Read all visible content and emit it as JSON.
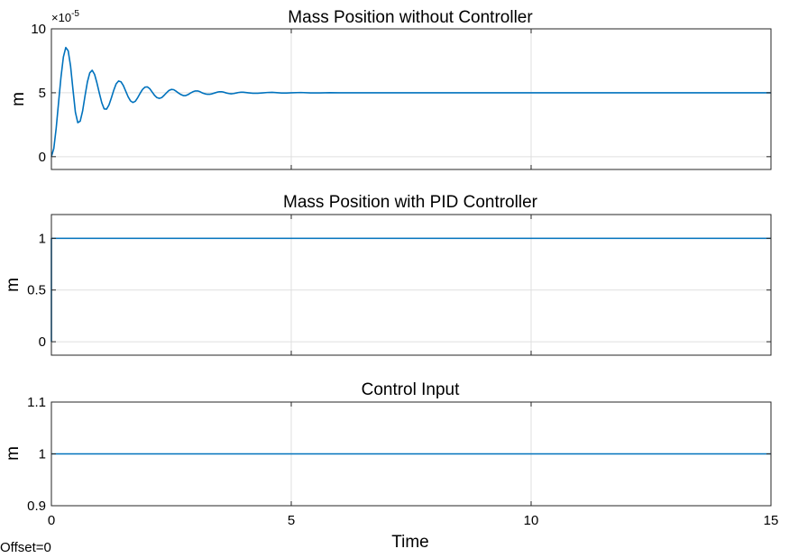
{
  "figure": {
    "xlabel": "Time",
    "offset_text": "Offset=0",
    "line_color": "#0072bd",
    "grid_color": "#dfdfdf"
  },
  "chart_data": [
    {
      "type": "line",
      "title": "Mass Position without Controller",
      "ylabel": "m",
      "xlim": [
        0,
        15
      ],
      "ylim": [
        -1e-05,
        0.0001
      ],
      "yticks": [
        0,
        5e-05,
        0.0001
      ],
      "ytick_labels": [
        "0",
        "5",
        "10"
      ],
      "y_exponent_label": "×10",
      "y_exponent": "-5",
      "xticks": [
        0,
        5,
        10,
        15
      ],
      "grid": true,
      "series": [
        {
          "x": [
            0,
            0.05,
            0.1,
            0.15,
            0.2,
            0.25,
            0.3,
            0.35,
            0.4,
            0.45,
            0.5,
            0.55,
            0.6,
            0.65,
            0.7,
            0.75,
            0.8,
            0.85,
            0.9,
            0.95,
            1,
            1.05,
            1.1,
            1.15,
            1.2,
            1.25,
            1.3,
            1.35,
            1.4,
            1.45,
            1.5,
            1.55,
            1.6,
            1.65,
            1.7,
            1.75,
            1.8,
            1.85,
            1.9,
            1.95,
            2,
            2.05,
            2.1,
            2.15,
            2.2,
            2.25,
            2.3,
            2.35,
            2.4,
            2.45,
            2.5,
            2.55,
            2.6,
            2.65,
            2.7,
            2.75,
            2.8,
            2.85,
            2.9,
            2.95,
            3,
            3.05,
            3.1,
            3.15,
            3.2,
            3.25,
            3.3,
            3.35,
            3.4,
            3.45,
            3.5,
            3.55,
            3.6,
            3.65,
            3.7,
            3.75,
            3.8,
            3.85,
            3.9,
            3.95,
            4,
            4.1,
            4.2,
            4.3,
            4.4,
            4.5,
            4.6,
            4.7,
            4.8,
            4.9,
            5,
            5.2,
            5.4,
            5.6,
            5.8,
            6,
            6.2,
            6.4,
            6.6,
            6.8,
            7,
            8,
            9,
            10,
            11,
            12,
            13,
            14,
            15
          ],
          "y": [
            0,
            6.4e-06,
            2.24e-05,
            4.26e-05,
            6.23e-05,
            7.8e-05,
            8.54e-05,
            8.28e-05,
            7.08e-05,
            5.24e-05,
            3.48e-05,
            2.66e-05,
            2.78e-05,
            3.56e-05,
            4.74e-05,
            5.84e-05,
            6.56e-05,
            6.76e-05,
            6.44e-05,
            5.76e-05,
            4.96e-05,
            4.22e-05,
            3.74e-05,
            3.72e-05,
            4.04e-05,
            4.6e-05,
            5.2e-05,
            5.7e-05,
            5.92e-05,
            5.86e-05,
            5.56e-05,
            5.12e-05,
            4.68e-05,
            4.36e-05,
            4.24e-05,
            4.34e-05,
            4.62e-05,
            4.96e-05,
            5.26e-05,
            5.44e-05,
            5.46e-05,
            5.32e-05,
            5.06e-05,
            4.8e-05,
            4.62e-05,
            4.56e-05,
            4.62e-05,
            4.8e-05,
            5e-05,
            5.18e-05,
            5.26e-05,
            5.24e-05,
            5.12e-05,
            4.98e-05,
            4.86e-05,
            4.78e-05,
            4.78e-05,
            4.86e-05,
            4.98e-05,
            5.08e-05,
            5.14e-05,
            5.14e-05,
            5.08e-05,
            4.98e-05,
            4.92e-05,
            4.88e-05,
            4.88e-05,
            4.92e-05,
            4.98e-05,
            5.04e-05,
            5.08e-05,
            5.08e-05,
            5.04e-05,
            4.98e-05,
            4.94e-05,
            4.92e-05,
            4.94e-05,
            4.98e-05,
            5.02e-05,
            5.04e-05,
            5.04e-05,
            5e-05,
            4.96e-05,
            4.96e-05,
            4.99e-05,
            5.02e-05,
            5.03e-05,
            5.01e-05,
            4.98e-05,
            4.98e-05,
            5e-05,
            5.02e-05,
            4.99e-05,
            4.99e-05,
            5.01e-05,
            5e-05,
            5e-05,
            5e-05,
            5e-05,
            5e-05,
            5e-05,
            5e-05,
            5e-05,
            5e-05,
            5e-05,
            5e-05,
            5e-05,
            5e-05,
            5e-05
          ]
        }
      ]
    },
    {
      "type": "line",
      "title": "Mass Position with PID Controller",
      "ylabel": "m",
      "xlim": [
        0,
        15
      ],
      "ylim": [
        -0.13,
        1.23
      ],
      "yticks": [
        0,
        0.5,
        1
      ],
      "ytick_labels": [
        "0",
        "0.5",
        "1"
      ],
      "xticks": [
        0,
        5,
        10,
        15
      ],
      "grid": true,
      "series": [
        {
          "x": [
            0,
            0,
            15
          ],
          "y": [
            0,
            1,
            1
          ]
        }
      ]
    },
    {
      "type": "line",
      "title": "Control Input",
      "ylabel": "m",
      "xlim": [
        0,
        15
      ],
      "ylim": [
        0.9,
        1.1
      ],
      "yticks": [
        0.9,
        1,
        1.1
      ],
      "ytick_labels": [
        "0.9",
        "1",
        "1.1"
      ],
      "xticks": [
        0,
        5,
        10,
        15
      ],
      "xtick_labels": [
        "0",
        "5",
        "10",
        "15"
      ],
      "grid": true,
      "series": [
        {
          "x": [
            0,
            15
          ],
          "y": [
            1,
            1
          ]
        }
      ]
    }
  ]
}
